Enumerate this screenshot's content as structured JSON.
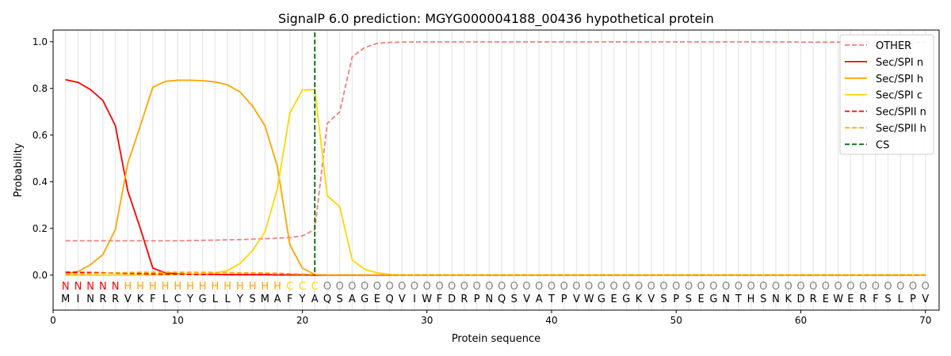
{
  "chart_data": {
    "type": "line",
    "title": "SignalP 6.0 prediction: MGYG000004188_00436 hypothetical protein",
    "xlabel": "Protein sequence",
    "ylabel": "Probability",
    "xlim": [
      0,
      71.1
    ],
    "ylim": [
      -0.15,
      1.05
    ],
    "xticks": [
      0,
      10,
      20,
      30,
      40,
      50,
      60,
      70
    ],
    "yticks": [
      0.0,
      0.2,
      0.4,
      0.6,
      0.8,
      1.0
    ],
    "ytick_labels": [
      "0.0",
      "0.2",
      "0.4",
      "0.6",
      "0.8",
      "1.0"
    ],
    "grid": "vertical lines at each residue",
    "legend_position": "top-right",
    "sequence": [
      "M",
      "I",
      "N",
      "R",
      "R",
      "V",
      "K",
      "F",
      "L",
      "C",
      "Y",
      "G",
      "L",
      "L",
      "Y",
      "S",
      "M",
      "A",
      "F",
      "Y",
      "A",
      "Q",
      "S",
      "A",
      "G",
      "E",
      "Q",
      "V",
      "I",
      "W",
      "F",
      "D",
      "R",
      "P",
      "N",
      "Q",
      "S",
      "V",
      "A",
      "T",
      "P",
      "V",
      "W",
      "G",
      "E",
      "G",
      "K",
      "V",
      "S",
      "P",
      "S",
      "E",
      "G",
      "N",
      "T",
      "H",
      "S",
      "N",
      "K",
      "D",
      "R",
      "E",
      "W",
      "E",
      "R",
      "F",
      "S",
      "L",
      "P",
      "V"
    ],
    "region_labels": [
      "N",
      "N",
      "N",
      "N",
      "N",
      "H",
      "H",
      "H",
      "H",
      "H",
      "H",
      "H",
      "H",
      "H",
      "H",
      "H",
      "H",
      "H",
      "C",
      "C",
      "C",
      "O",
      "O",
      "O",
      "O",
      "O",
      "O",
      "O",
      "O",
      "O",
      "O",
      "O",
      "O",
      "O",
      "O",
      "O",
      "O",
      "O",
      "O",
      "O",
      "O",
      "O",
      "O",
      "O",
      "O",
      "O",
      "O",
      "O",
      "O",
      "O",
      "O",
      "O",
      "O",
      "O",
      "O",
      "O",
      "O",
      "O",
      "O",
      "O",
      "O",
      "O",
      "O",
      "O",
      "O",
      "O",
      "O",
      "O",
      "O",
      "O"
    ],
    "region_colors": {
      "N": "#ff0000",
      "H": "#ffa500",
      "C": "#ffd700",
      "O": "#808080"
    },
    "cs_position": 21,
    "series": [
      {
        "name": "OTHER",
        "color": "#f08080",
        "dash": true,
        "values": [
          0.147,
          0.147,
          0.147,
          0.147,
          0.147,
          0.147,
          0.147,
          0.147,
          0.147,
          0.147,
          0.148,
          0.149,
          0.15,
          0.151,
          0.152,
          0.154,
          0.156,
          0.158,
          0.161,
          0.168,
          0.195,
          0.65,
          0.7,
          0.935,
          0.975,
          0.993,
          0.997,
          0.998,
          0.999,
          0.999,
          0.999,
          0.999,
          0.999,
          0.999,
          0.999,
          0.999,
          0.999,
          0.999,
          0.999,
          0.999,
          0.999,
          0.999,
          0.999,
          0.999,
          0.999,
          0.999,
          0.999,
          0.999,
          0.999,
          0.999,
          0.999,
          0.999,
          0.999,
          0.999,
          0.999,
          0.999,
          0.999,
          0.999,
          0.999,
          0.998,
          0.998,
          0.998,
          0.998,
          0.998,
          0.998,
          0.998,
          0.998,
          0.998,
          0.998,
          0.998
        ]
      },
      {
        "name": "Sec/SPI n",
        "color": "#ff0000",
        "dash": false,
        "values": [
          0.837,
          0.826,
          0.795,
          0.748,
          0.64,
          0.36,
          0.2,
          0.03,
          0.01,
          0.005,
          0.004,
          0.003,
          0.003,
          0.002,
          0.002,
          0.002,
          0.002,
          0.001,
          0.001,
          0.001,
          0,
          0,
          0,
          0,
          0,
          0,
          0,
          0,
          0,
          0,
          0,
          0,
          0,
          0,
          0,
          0,
          0,
          0,
          0,
          0,
          0,
          0,
          0,
          0,
          0,
          0,
          0,
          0,
          0,
          0,
          0,
          0,
          0,
          0,
          0,
          0,
          0,
          0,
          0,
          0,
          0,
          0,
          0,
          0,
          0,
          0,
          0,
          0,
          0,
          0
        ]
      },
      {
        "name": "Sec/SPI h",
        "color": "#ffa500",
        "dash": false,
        "values": [
          0.005,
          0.015,
          0.045,
          0.088,
          0.195,
          0.48,
          0.64,
          0.805,
          0.83,
          0.835,
          0.835,
          0.833,
          0.828,
          0.815,
          0.785,
          0.725,
          0.64,
          0.465,
          0.13,
          0.03,
          0.003,
          0,
          0,
          0,
          0,
          0,
          0,
          0,
          0,
          0,
          0,
          0,
          0,
          0,
          0,
          0,
          0,
          0,
          0,
          0,
          0,
          0,
          0,
          0,
          0,
          0,
          0,
          0,
          0,
          0,
          0,
          0,
          0,
          0,
          0,
          0,
          0,
          0,
          0,
          0,
          0,
          0,
          0,
          0,
          0,
          0,
          0,
          0,
          0,
          0
        ]
      },
      {
        "name": "Sec/SPI c",
        "color": "#ffd700",
        "dash": false,
        "values": [
          0,
          0,
          0,
          0,
          0,
          0,
          0,
          0,
          0.002,
          0.003,
          0.004,
          0.005,
          0.008,
          0.02,
          0.05,
          0.105,
          0.185,
          0.37,
          0.695,
          0.793,
          0.795,
          0.34,
          0.293,
          0.065,
          0.025,
          0.01,
          0.003,
          0,
          0,
          0,
          0,
          0,
          0,
          0,
          0,
          0,
          0,
          0,
          0,
          0,
          0,
          0,
          0,
          0,
          0,
          0,
          0,
          0,
          0,
          0,
          0,
          0,
          0,
          0,
          0,
          0,
          0,
          0,
          0,
          0,
          0,
          0,
          0,
          0,
          0,
          0,
          0,
          0,
          0,
          0
        ]
      },
      {
        "name": "Sec/SPII n",
        "color": "#ff0000",
        "dash": true,
        "values": [
          0.012,
          0.012,
          0.011,
          0.01,
          0.008,
          0.007,
          0.006,
          0.005,
          0.004,
          0.004,
          0.003,
          0.003,
          0.003,
          0.002,
          0.002,
          0.002,
          0.002,
          0.001,
          0.001,
          0.001,
          0,
          0,
          0,
          0,
          0,
          0,
          0,
          0,
          0,
          0,
          0,
          0,
          0,
          0,
          0,
          0,
          0,
          0,
          0,
          0,
          0,
          0,
          0,
          0,
          0,
          0,
          0,
          0,
          0,
          0,
          0,
          0,
          0,
          0,
          0,
          0,
          0,
          0,
          0,
          0,
          0,
          0,
          0,
          0,
          0,
          0,
          0,
          0,
          0,
          0
        ]
      },
      {
        "name": "Sec/SPII h",
        "color": "#ffa500",
        "dash": true,
        "values": [
          0.003,
          0.005,
          0.007,
          0.008,
          0.01,
          0.011,
          0.012,
          0.012,
          0.012,
          0.012,
          0.012,
          0.012,
          0.011,
          0.011,
          0.01,
          0.01,
          0.009,
          0.008,
          0.006,
          0.004,
          0.002,
          0,
          0,
          0,
          0,
          0,
          0,
          0,
          0,
          0,
          0,
          0,
          0,
          0,
          0,
          0,
          0,
          0,
          0,
          0,
          0,
          0,
          0,
          0,
          0,
          0,
          0,
          0,
          0,
          0,
          0,
          0,
          0,
          0,
          0,
          0,
          0,
          0,
          0,
          0,
          0,
          0,
          0,
          0,
          0,
          0,
          0,
          0,
          0,
          0
        ]
      }
    ],
    "cs_legend": {
      "name": "CS",
      "color": "#006400"
    }
  }
}
